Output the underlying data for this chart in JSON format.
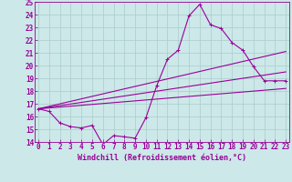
{
  "background_color": "#cce8e8",
  "grid_color": "#aacccc",
  "line_color": "#990099",
  "x_min": 0,
  "x_max": 23,
  "y_min": 14,
  "y_max": 25,
  "xlabel": "Windchill (Refroidissement éolien,°C)",
  "xlabel_color": "#990099",
  "series": {
    "wavy": {
      "x": [
        0,
        1,
        2,
        3,
        4,
        5,
        6,
        7,
        8,
        9,
        10,
        11,
        12,
        13,
        14,
        15,
        16,
        17,
        18,
        19,
        20,
        21,
        22,
        23
      ],
      "y": [
        16.6,
        16.4,
        15.5,
        15.2,
        15.1,
        15.3,
        13.8,
        14.5,
        14.4,
        14.3,
        15.9,
        18.4,
        20.5,
        21.2,
        23.9,
        24.8,
        23.2,
        22.9,
        21.8,
        21.2,
        19.9,
        18.8,
        18.8,
        18.8
      ]
    },
    "line_top": {
      "x": [
        0,
        23
      ],
      "y": [
        16.6,
        21.1
      ]
    },
    "line_mid": {
      "x": [
        0,
        23
      ],
      "y": [
        16.6,
        19.5
      ]
    },
    "line_bot": {
      "x": [
        0,
        23
      ],
      "y": [
        16.6,
        18.2
      ]
    }
  },
  "yticks": [
    14,
    15,
    16,
    17,
    18,
    19,
    20,
    21,
    22,
    23,
    24,
    25
  ],
  "xticks": [
    0,
    1,
    2,
    3,
    4,
    5,
    6,
    7,
    8,
    9,
    10,
    11,
    12,
    13,
    14,
    15,
    16,
    17,
    18,
    19,
    20,
    21,
    22,
    23
  ],
  "tick_fontsize": 5.5,
  "xlabel_fontsize": 6.0
}
